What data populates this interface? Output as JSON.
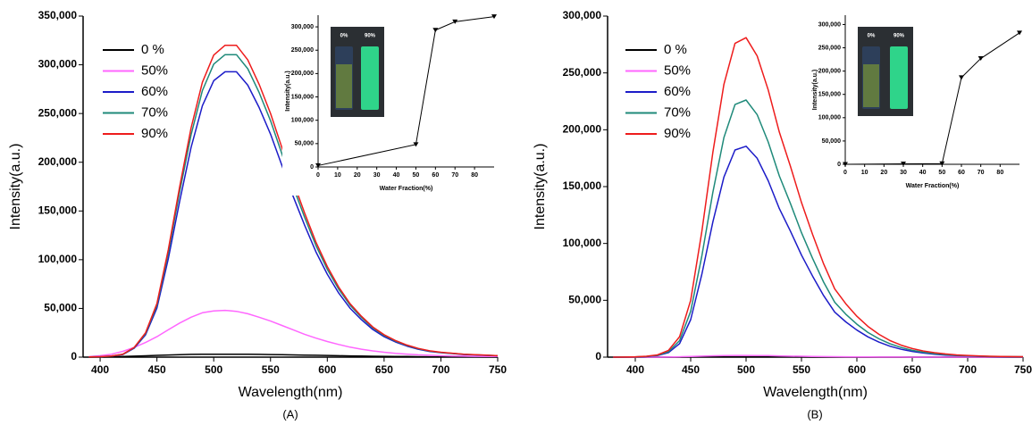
{
  "chart_data": [
    {
      "type": "line",
      "panel_label": "(A)",
      "x_label": "Wavelength(nm)",
      "y_label": "Intensity(a.u.)",
      "x": [
        390,
        400,
        410,
        420,
        430,
        440,
        450,
        460,
        470,
        480,
        490,
        500,
        510,
        520,
        530,
        540,
        550,
        560,
        570,
        580,
        590,
        600,
        610,
        620,
        630,
        640,
        650,
        660,
        670,
        680,
        690,
        700,
        710,
        720,
        730,
        740,
        750
      ],
      "xlim": [
        385,
        750
      ],
      "ylim": [
        0,
        350000
      ],
      "xticks": [
        400,
        450,
        500,
        550,
        600,
        650,
        700,
        750
      ],
      "yticks": [
        0,
        {
          "value": 50000,
          "label": "50,000"
        },
        {
          "value": 100000,
          "label": "100,000"
        },
        {
          "value": 150000,
          "label": "150,000"
        },
        {
          "value": 200000,
          "label": "200,000"
        },
        {
          "value": 250000,
          "label": "250,000"
        },
        {
          "value": 300000,
          "label": "300,000"
        },
        {
          "value": 350000,
          "label": "350,000"
        }
      ],
      "series": [
        {
          "name": "0 %",
          "color": "#000000",
          "values": [
            0,
            100,
            300,
            600,
            1000,
            1400,
            1800,
            2200,
            2500,
            2800,
            2900,
            3000,
            3000,
            3000,
            2900,
            2800,
            2700,
            2500,
            2300,
            2100,
            1900,
            1700,
            1500,
            1300,
            1100,
            900,
            800,
            700,
            600,
            500,
            400,
            300,
            300,
            200,
            200,
            100,
            100
          ]
        },
        {
          "name": "50%",
          "color": "#ff66ff",
          "values": [
            500,
            1500,
            3000,
            6000,
            10000,
            15000,
            21000,
            28000,
            35000,
            41000,
            45500,
            47500,
            48000,
            47000,
            44500,
            41000,
            37000,
            32500,
            28000,
            23500,
            19500,
            16000,
            13000,
            10300,
            8200,
            6400,
            5000,
            3900,
            3100,
            2400,
            1900,
            1500,
            1200,
            1000,
            800,
            700,
            600
          ]
        },
        {
          "name": "60%",
          "color": "#1c1cc8",
          "values": [
            200,
            500,
            1100,
            2700,
            9200,
            22900,
            50300,
            100700,
            160100,
            215000,
            258000,
            283700,
            292800,
            292800,
            279100,
            256200,
            228800,
            196700,
            164700,
            135400,
            108000,
            85100,
            65900,
            50300,
            38400,
            28400,
            21000,
            15600,
            11400,
            8200,
            5900,
            4600,
            3700,
            2700,
            2300,
            1800,
            1400
          ]
        },
        {
          "name": "70%",
          "color": "#1f8a7a",
          "values": [
            200,
            500,
            1200,
            2900,
            9700,
            24300,
            53400,
            106700,
            169800,
            228000,
            273500,
            300700,
            310400,
            310400,
            295900,
            271600,
            242500,
            208600,
            174600,
            143600,
            114500,
            90200,
            69800,
            53400,
            40700,
            30100,
            22300,
            16500,
            12100,
            8700,
            6300,
            4900,
            3900,
            2900,
            2400,
            1900,
            1500
          ]
        },
        {
          "name": "90%",
          "color": "#ee1c1c",
          "values": [
            200,
            500,
            1200,
            3000,
            10000,
            25000,
            55000,
            110000,
            175000,
            235000,
            282000,
            310000,
            320000,
            320000,
            305000,
            280000,
            250000,
            215000,
            180000,
            148000,
            118000,
            93000,
            72000,
            55000,
            42000,
            31000,
            23000,
            17000,
            12500,
            9000,
            6500,
            5000,
            4000,
            3000,
            2500,
            2000,
            1500
          ]
        }
      ]
    },
    {
      "type": "line",
      "x_label": "Water Fraction(%)",
      "y_label": "Intensity(a.u.)",
      "photo_labels": [
        "0%",
        "90%"
      ],
      "x": [
        0,
        50,
        60,
        70,
        90
      ],
      "values": [
        3000,
        48000,
        293000,
        311000,
        322000
      ],
      "color": "#000000",
      "marker": "triangle-down",
      "xlim": [
        0,
        90
      ],
      "ylim": [
        0,
        325000
      ],
      "xticks": [
        0,
        10,
        20,
        30,
        40,
        50,
        60,
        70,
        80
      ],
      "yticks": [
        0,
        {
          "value": 50000,
          "label": "50,000"
        },
        {
          "value": 100000,
          "label": "100,000"
        },
        {
          "value": 150000,
          "label": "150,000"
        },
        {
          "value": 200000,
          "label": "200,000"
        },
        {
          "value": 250000,
          "label": "250,000"
        },
        {
          "value": 300000,
          "label": "300,000"
        }
      ]
    },
    {
      "type": "line",
      "panel_label": "(B)",
      "x_label": "Wavelength(nm)",
      "y_label": "Intensity(a.u.)",
      "x": [
        380,
        390,
        400,
        410,
        420,
        430,
        440,
        450,
        460,
        470,
        480,
        490,
        500,
        510,
        520,
        530,
        540,
        550,
        560,
        570,
        580,
        590,
        600,
        610,
        620,
        630,
        640,
        650,
        660,
        670,
        680,
        690,
        700,
        710,
        720,
        730,
        740,
        750
      ],
      "xlim": [
        375,
        750
      ],
      "ylim": [
        0,
        300000
      ],
      "xticks": [
        400,
        450,
        500,
        550,
        600,
        650,
        700,
        750
      ],
      "yticks": [
        0,
        {
          "value": 50000,
          "label": "50,000"
        },
        {
          "value": 100000,
          "label": "100,000"
        },
        {
          "value": 150000,
          "label": "150,000"
        },
        {
          "value": 200000,
          "label": "200,000"
        },
        {
          "value": 250000,
          "label": "250,000"
        },
        {
          "value": 300000,
          "label": "300,000"
        }
      ],
      "series": [
        {
          "name": "0 %",
          "color": "#000000",
          "values": [
            0,
            0,
            0,
            0,
            0,
            0,
            100,
            200,
            200,
            300,
            300,
            300,
            300,
            300,
            300,
            200,
            200,
            200,
            100,
            100,
            100,
            100,
            0,
            0,
            0,
            0,
            0,
            0,
            0,
            0,
            0,
            0,
            0,
            0,
            0,
            0,
            0,
            0
          ]
        },
        {
          "name": "50%",
          "color": "#ff66ff",
          "values": [
            0,
            0,
            0,
            0,
            0,
            100,
            300,
            600,
            900,
            1200,
            1400,
            1500,
            1500,
            1400,
            1300,
            1100,
            900,
            800,
            600,
            500,
            400,
            300,
            200,
            200,
            100,
            100,
            100,
            0,
            0,
            0,
            0,
            0,
            0,
            0,
            0,
            0,
            0,
            0
          ]
        },
        {
          "name": "60%",
          "color": "#1c1cc8",
          "values": [
            0,
            100,
            200,
            500,
            1300,
            4000,
            11900,
            33000,
            72600,
            118800,
            158400,
            182200,
            185500,
            174900,
            155100,
            130700,
            110900,
            89800,
            71300,
            54100,
            39600,
            31000,
            23800,
            17800,
            13200,
            9600,
            6900,
            5000,
            3600,
            2600,
            1800,
            1300,
            1000,
            700,
            500,
            400,
            300,
            300
          ]
        },
        {
          "name": "70%",
          "color": "#1f8a7a",
          "values": [
            0,
            100,
            200,
            600,
            1600,
            4800,
            14500,
            40300,
            88600,
            144900,
            193200,
            222200,
            226200,
            213300,
            189200,
            159400,
            135200,
            109500,
            86900,
            66000,
            48300,
            37800,
            29000,
            21700,
            16100,
            11700,
            8500,
            6000,
            4300,
            3100,
            2300,
            1600,
            1200,
            900,
            600,
            500,
            400,
            300
          ]
        },
        {
          "name": "90%",
          "color": "#ee1c1c",
          "values": [
            0,
            100,
            300,
            800,
            2000,
            6000,
            18000,
            50000,
            110000,
            180000,
            240000,
            276000,
            281000,
            265000,
            235000,
            198000,
            168000,
            136000,
            108000,
            82000,
            60000,
            47000,
            36000,
            27000,
            20000,
            14500,
            10500,
            7500,
            5400,
            3900,
            2800,
            2000,
            1500,
            1100,
            800,
            600,
            500,
            400
          ]
        }
      ]
    },
    {
      "type": "line",
      "x_label": "Water Fraction(%)",
      "y_label": "Intensity(a.u.)",
      "photo_labels": [
        "0%",
        "90%"
      ],
      "x": [
        0,
        30,
        50,
        60,
        70,
        90
      ],
      "values": [
        0,
        1000,
        1500,
        186000,
        227000,
        282000
      ],
      "color": "#000000",
      "marker": "triangle-down",
      "xlim": [
        0,
        90
      ],
      "ylim": [
        0,
        320000
      ],
      "xticks": [
        0,
        10,
        20,
        30,
        40,
        50,
        60,
        70,
        80
      ],
      "yticks": [
        0,
        {
          "value": 50000,
          "label": "50,000"
        },
        {
          "value": 100000,
          "label": "100,000"
        },
        {
          "value": 150000,
          "label": "150,000"
        },
        {
          "value": 200000,
          "label": "200,000"
        },
        {
          "value": 250000,
          "label": "250,000"
        },
        {
          "value": 300000,
          "label": "300,000"
        }
      ]
    }
  ]
}
